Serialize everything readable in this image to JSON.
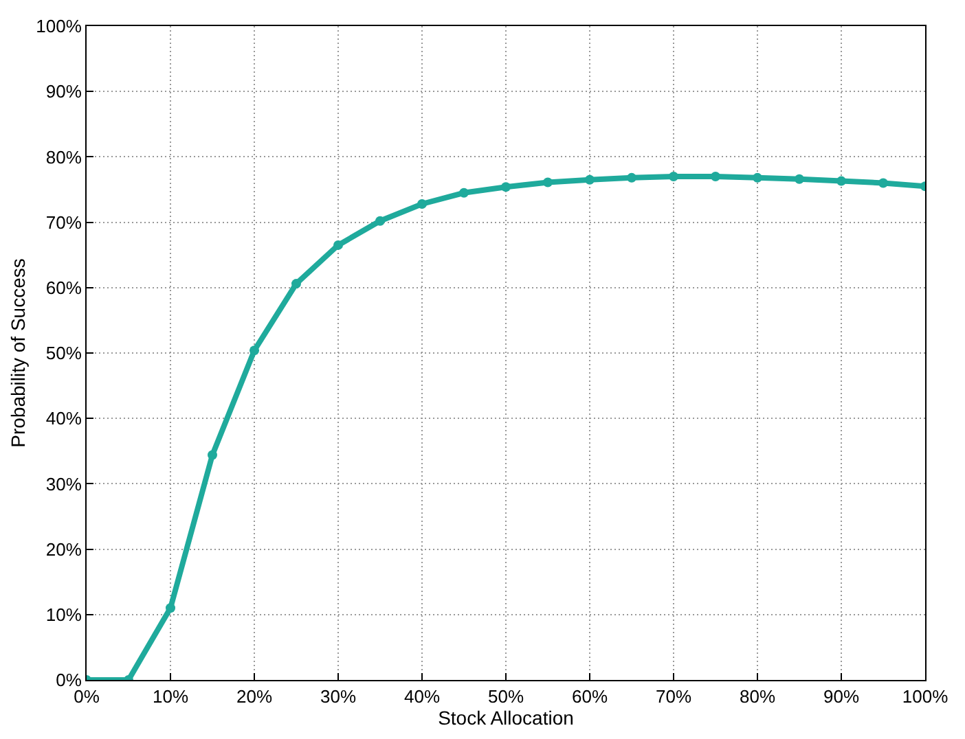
{
  "chart_data": {
    "type": "line",
    "xlabel": "Stock Allocation",
    "ylabel": "Probability of Success",
    "x": [
      0,
      5,
      10,
      15,
      20,
      25,
      30,
      35,
      40,
      45,
      50,
      55,
      60,
      65,
      70,
      75,
      80,
      85,
      90,
      95,
      100
    ],
    "series": [
      {
        "color": "#1faa9c",
        "values": [
          0,
          0,
          11,
          34.4,
          50.4,
          60.6,
          66.5,
          70.2,
          72.8,
          74.5,
          75.4,
          76.1,
          76.5,
          76.8,
          77.0,
          77.0,
          76.8,
          76.6,
          76.3,
          76.0,
          75.5
        ]
      }
    ],
    "xlim": [
      0,
      100
    ],
    "ylim": [
      0,
      100
    ],
    "xticks": [
      {
        "value": 0,
        "label": "0%"
      },
      {
        "value": 10,
        "label": "10%"
      },
      {
        "value": 20,
        "label": "20%"
      },
      {
        "value": 30,
        "label": "30%"
      },
      {
        "value": 40,
        "label": "40%"
      },
      {
        "value": 50,
        "label": "50%"
      },
      {
        "value": 60,
        "label": "60%"
      },
      {
        "value": 70,
        "label": "70%"
      },
      {
        "value": 80,
        "label": "80%"
      },
      {
        "value": 90,
        "label": "90%"
      },
      {
        "value": 100,
        "label": "100%"
      }
    ],
    "yticks": [
      {
        "value": 0,
        "label": "0%"
      },
      {
        "value": 10,
        "label": "10%"
      },
      {
        "value": 20,
        "label": "20%"
      },
      {
        "value": 30,
        "label": "30%"
      },
      {
        "value": 40,
        "label": "40%"
      },
      {
        "value": 50,
        "label": "50%"
      },
      {
        "value": 60,
        "label": "60%"
      },
      {
        "value": 70,
        "label": "70%"
      },
      {
        "value": 80,
        "label": "80%"
      },
      {
        "value": 90,
        "label": "90%"
      },
      {
        "value": 100,
        "label": "100%"
      }
    ],
    "grid": true,
    "marker": "circle",
    "line_style": "solid"
  }
}
